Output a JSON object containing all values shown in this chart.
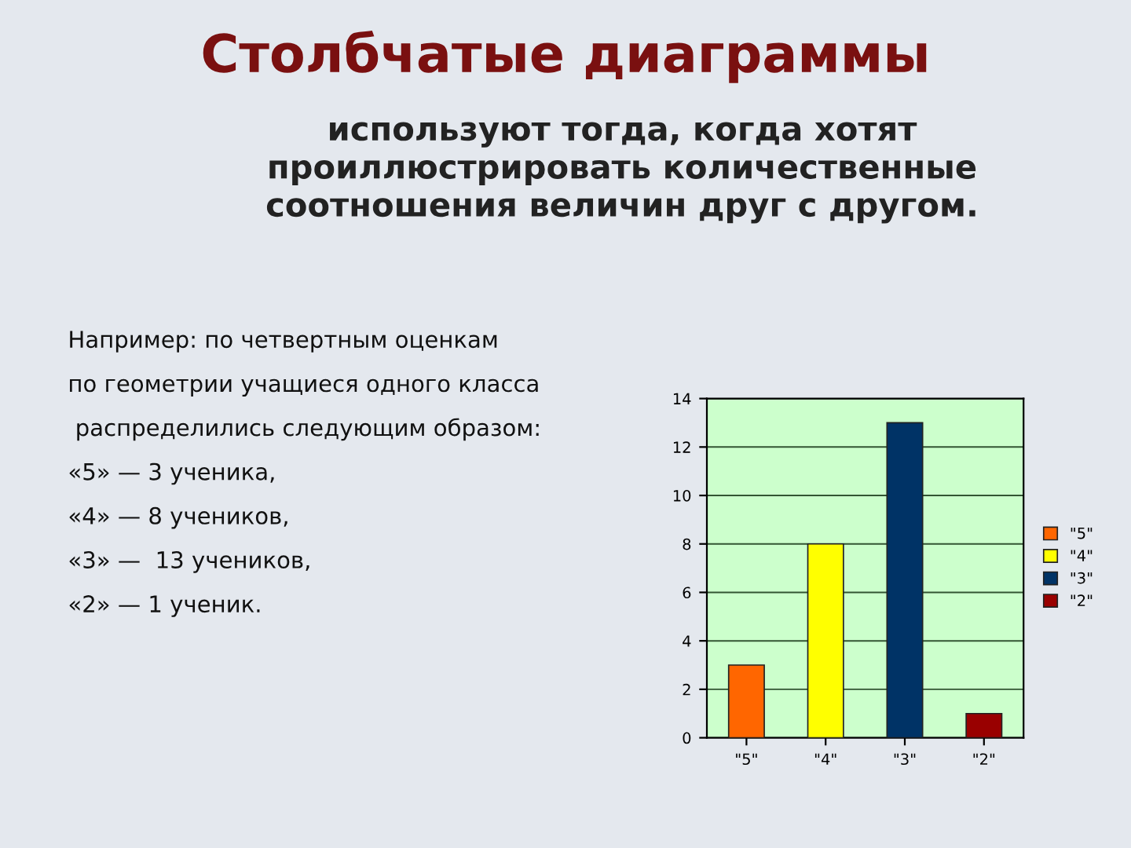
{
  "chart_data": {
    "type": "bar",
    "title": "Столбчатые диаграммы",
    "subtitle": "используют тогда, когда хотят\nпроиллюстрировать количественные\nсоотношения величин друг с другом.",
    "annotations": [
      "Например: по четвертным оценкам",
      "по геометрии учащиеся одного класса",
      " распределились следующим образом:",
      "«5» — 3 ученика,",
      "«4» — 8 учеников,",
      "«3» —  13 учеников,",
      "«2» — 1 ученик."
    ],
    "categories": [
      "\"5\"",
      "\"4\"",
      "\"3\"",
      "\"2\""
    ],
    "series": [
      {
        "name": "\"5\"",
        "color": "#ff6600",
        "values": [
          3,
          null,
          null,
          null
        ]
      },
      {
        "name": "\"4\"",
        "color": "#ffff00",
        "values": [
          null,
          8,
          null,
          null
        ]
      },
      {
        "name": "\"3\"",
        "color": "#003366",
        "values": [
          null,
          null,
          13,
          null
        ]
      },
      {
        "name": "\"2\"",
        "color": "#990000",
        "values": [
          null,
          null,
          null,
          1
        ]
      }
    ],
    "ylim": [
      0,
      14
    ],
    "yticks": [
      0,
      2,
      4,
      6,
      8,
      10,
      12,
      14
    ],
    "grid": "y",
    "legend": "right"
  }
}
